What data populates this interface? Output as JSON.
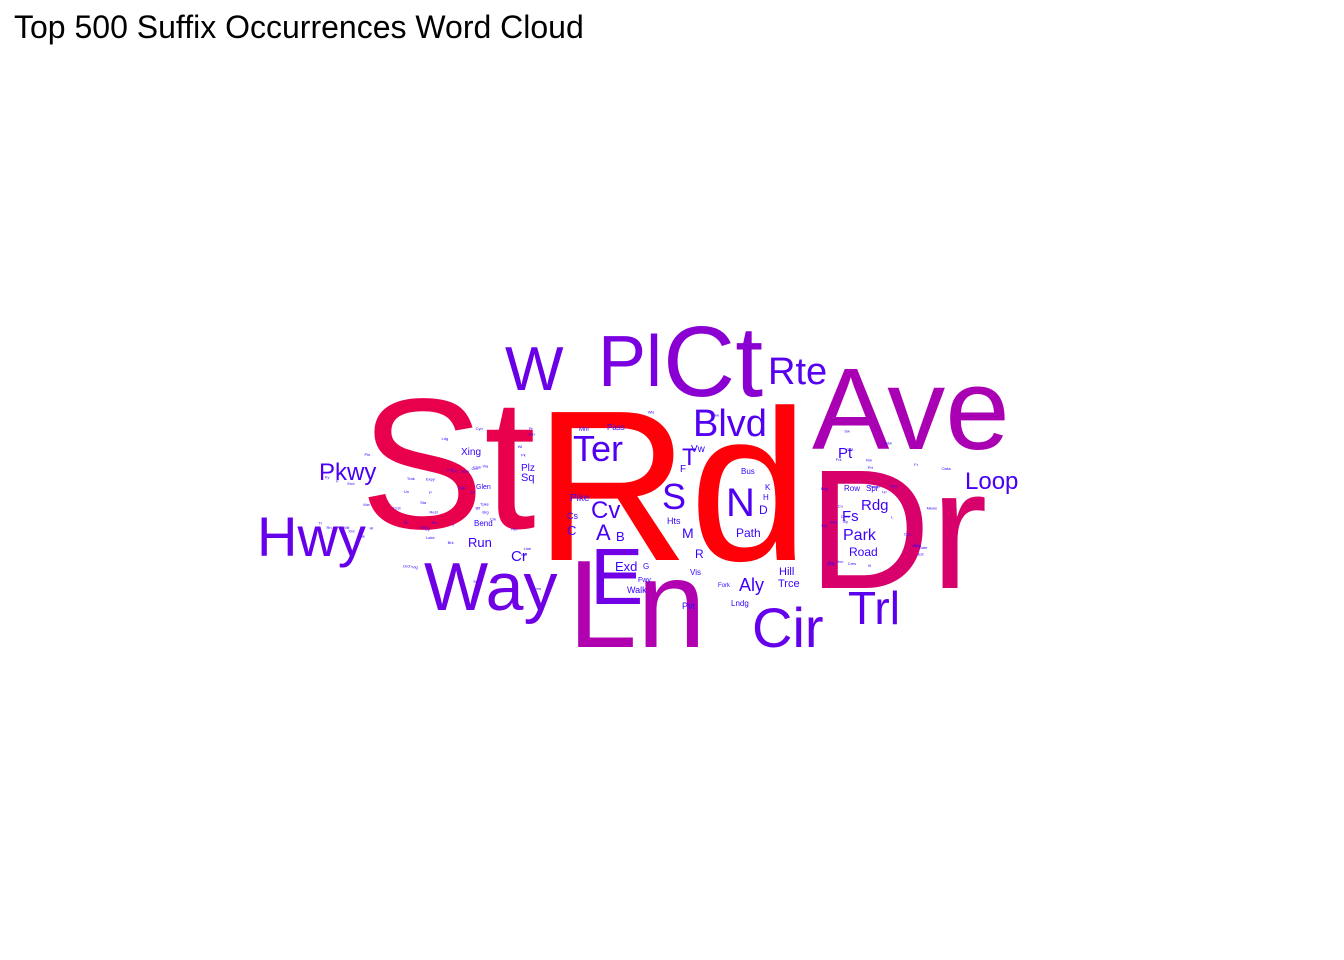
{
  "chart_data": {
    "type": "wordcloud",
    "title": "Top 500 Suffix Occurrences Word Cloud",
    "color_scale": [
      "#3300ff",
      "#ff0000"
    ],
    "words": [
      {
        "text": "Rd",
        "weight": 100,
        "color": "#ff0008"
      },
      {
        "text": "St",
        "weight": 80,
        "color": "#e8004c"
      },
      {
        "text": "Dr",
        "weight": 72,
        "color": "#d8006a"
      },
      {
        "text": "Ln",
        "weight": 58,
        "color": "#b000b0"
      },
      {
        "text": "Ave",
        "weight": 55,
        "color": "#aa00b4"
      },
      {
        "text": "Ct",
        "weight": 49,
        "color": "#8a00d2"
      },
      {
        "text": "E",
        "weight": 38,
        "color": "#7100e6"
      },
      {
        "text": "Pl",
        "weight": 35,
        "color": "#7a00e0"
      },
      {
        "text": "Way",
        "weight": 33,
        "color": "#6f00e6"
      },
      {
        "text": "W",
        "weight": 29,
        "color": "#6a00e8"
      },
      {
        "text": "Hwy",
        "weight": 27,
        "color": "#6600ea"
      },
      {
        "text": "Cir",
        "weight": 27,
        "color": "#6500ec"
      },
      {
        "text": "Trl",
        "weight": 22,
        "color": "#5a00ee"
      },
      {
        "text": "Rte",
        "weight": 20,
        "color": "#5800f0"
      },
      {
        "text": "Blvd",
        "weight": 20,
        "color": "#5300f2"
      },
      {
        "text": "N",
        "weight": 20,
        "color": "#5000f2"
      },
      {
        "text": "Ter",
        "weight": 19,
        "color": "#5200f2"
      },
      {
        "text": "S",
        "weight": 19,
        "color": "#4f00f2"
      },
      {
        "text": "Cv",
        "weight": 13,
        "color": "#4a00f4"
      },
      {
        "text": "T",
        "weight": 13,
        "color": "#4800f4"
      },
      {
        "text": "Pkwy",
        "weight": 13,
        "color": "#4a00f4"
      },
      {
        "text": "Loop",
        "weight": 13,
        "color": "#4800f4"
      },
      {
        "text": "A",
        "weight": 12,
        "color": "#4500f6"
      },
      {
        "text": "Aly",
        "weight": 10,
        "color": "#4200f8"
      },
      {
        "text": "Park",
        "weight": 9,
        "color": "#3f00f8"
      },
      {
        "text": "Rdg",
        "weight": 9,
        "color": "#3f00f8"
      },
      {
        "text": "Fs",
        "weight": 9,
        "color": "#3e00f8"
      },
      {
        "text": "Exd",
        "weight": 8,
        "color": "#3c00fa"
      },
      {
        "text": "Pt",
        "weight": 8,
        "color": "#3c00fa"
      },
      {
        "text": "Cr",
        "weight": 8,
        "color": "#3c00fa"
      },
      {
        "text": "M",
        "weight": 8,
        "color": "#3c00fa"
      },
      {
        "text": "Run",
        "weight": 7,
        "color": "#3a00fa"
      },
      {
        "text": "Path",
        "weight": 7,
        "color": "#3a00fa"
      },
      {
        "text": "Road",
        "weight": 7,
        "color": "#3a00fa"
      },
      {
        "text": "B",
        "weight": 7,
        "color": "#3a00fa"
      },
      {
        "text": "C",
        "weight": 7,
        "color": "#3a00fa"
      },
      {
        "text": "D",
        "weight": 7,
        "color": "#3a00fa"
      },
      {
        "text": "Hill",
        "weight": 6,
        "color": "#3800fc"
      },
      {
        "text": "Trce",
        "weight": 6,
        "color": "#3800fc"
      },
      {
        "text": "Xing",
        "weight": 5,
        "color": "#3700fc"
      },
      {
        "text": "Sq",
        "weight": 6,
        "color": "#3700fc"
      },
      {
        "text": "Plz",
        "weight": 5,
        "color": "#3700fc"
      },
      {
        "text": "Pike",
        "weight": 5,
        "color": "#3600fc"
      },
      {
        "text": "Walk",
        "weight": 5,
        "color": "#3600fc"
      },
      {
        "text": "R",
        "weight": 6,
        "color": "#3600fc"
      },
      {
        "text": "F",
        "weight": 5,
        "color": "#3600fc"
      },
      {
        "text": "Pvt",
        "weight": 5,
        "color": "#3600fc"
      },
      {
        "text": "Hts",
        "weight": 5,
        "color": "#3600fc"
      },
      {
        "text": "Bus",
        "weight": 4,
        "color": "#3500fe"
      },
      {
        "text": "Pass",
        "weight": 4,
        "color": "#3500fe"
      },
      {
        "text": "Row",
        "weight": 4,
        "color": "#3500fe"
      },
      {
        "text": "Spr",
        "weight": 4,
        "color": "#3500fe"
      },
      {
        "text": "Vw",
        "weight": 4,
        "color": "#3500fe"
      },
      {
        "text": "Cs",
        "weight": 4,
        "color": "#3500fe"
      },
      {
        "text": "G",
        "weight": 4,
        "color": "#3500fe"
      },
      {
        "text": "Bend",
        "weight": 4,
        "color": "#3400fe"
      },
      {
        "text": "Glen",
        "weight": 3,
        "color": "#3400fe"
      },
      {
        "text": "Lndg",
        "weight": 4,
        "color": "#3400fe"
      },
      {
        "text": "Vis",
        "weight": 4,
        "color": "#3400fe"
      },
      {
        "text": "H",
        "weight": 4,
        "color": "#3400fe"
      },
      {
        "text": "K",
        "weight": 4,
        "color": "#3400fe"
      },
      {
        "text": "Mnr",
        "weight": 3,
        "color": "#3300ff"
      },
      {
        "text": "Crst",
        "weight": 3,
        "color": "#3300ff"
      },
      {
        "text": "Fwy",
        "weight": 3,
        "color": "#3300ff"
      },
      {
        "text": "Fork",
        "weight": 3,
        "color": "#3300ff"
      },
      {
        "text": "Ests",
        "weight": 3,
        "color": "#3300ff"
      },
      {
        "text": "Main",
        "weight": 3,
        "color": "#3300ff"
      },
      {
        "text": "Spur",
        "weight": 3,
        "color": "#3300ff"
      },
      {
        "text": "Tpke",
        "weight": 3,
        "color": "#3300ff"
      },
      {
        "text": "Expy",
        "weight": 3,
        "color": "#3300ff"
      },
      {
        "text": "Oaks",
        "weight": 3,
        "color": "#3300ff"
      },
      {
        "text": "Lake",
        "weight": 3,
        "color": "#3300ff"
      },
      {
        "text": "Crk",
        "weight": 3,
        "color": "#3300ff"
      },
      {
        "text": "Byp",
        "weight": 3,
        "color": "#3300ff"
      },
      {
        "text": "Line",
        "weight": 3,
        "color": "#3300ff"
      },
      {
        "text": "Gate",
        "weight": 3,
        "color": "#3300ff"
      },
      {
        "text": "Brg",
        "weight": 3,
        "color": "#3300ff"
      },
      {
        "text": "Club",
        "weight": 3,
        "color": "#3300ff"
      },
      {
        "text": "Vly",
        "weight": 3,
        "color": "#3300ff"
      },
      {
        "text": "Anx",
        "weight": 3,
        "color": "#3300ff"
      },
      {
        "text": "Bay",
        "weight": 3,
        "color": "#3300ff"
      },
      {
        "text": "Up",
        "weight": 3,
        "color": "#3300ff"
      },
      {
        "text": "Ne",
        "weight": 3,
        "color": "#3300ff"
      },
      {
        "text": "Sp",
        "weight": 3,
        "color": "#3300ff"
      },
      {
        "text": "Sw",
        "weight": 3,
        "color": "#3300ff"
      },
      {
        "text": "Fr",
        "weight": 3,
        "color": "#3300ff"
      },
      {
        "text": "Pr",
        "weight": 3,
        "color": "#3300ff"
      },
      {
        "text": "Co",
        "weight": 3,
        "color": "#3300ff"
      },
      {
        "text": "Ext",
        "weight": 3,
        "color": "#3300ff"
      },
      {
        "text": "Est",
        "weight": 3,
        "color": "#3300ff"
      },
      {
        "text": "Mill",
        "weight": 3,
        "color": "#3300ff"
      },
      {
        "text": "Knl",
        "weight": 3,
        "color": "#3300ff"
      },
      {
        "text": "Cres",
        "weight": 3,
        "color": "#3300ff"
      },
      {
        "text": "Cyn",
        "weight": 3,
        "color": "#3300ff"
      },
      {
        "text": "End",
        "weight": 3,
        "color": "#3300ff"
      },
      {
        "text": "Sql",
        "weight": 3,
        "color": "#3300ff"
      },
      {
        "text": "Rest",
        "weight": 3,
        "color": "#3300ff"
      },
      {
        "text": "Mews",
        "weight": 3,
        "color": "#3300ff"
      },
      {
        "text": "Hl",
        "weight": 3,
        "color": "#3300ff"
      },
      {
        "text": "Sr",
        "weight": 3,
        "color": "#3300ff"
      },
      {
        "text": "U",
        "weight": 3,
        "color": "#3300ff"
      },
      {
        "text": "L",
        "weight": 3,
        "color": "#3300ff"
      },
      {
        "text": "Y",
        "weight": 3,
        "color": "#3300ff"
      },
      {
        "text": "V",
        "weight": 3,
        "color": "#3300ff"
      },
      {
        "text": "P",
        "weight": 3,
        "color": "#3300ff"
      },
      {
        "text": "Vl",
        "weight": 3,
        "color": "#3300ff"
      },
      {
        "text": "Wl",
        "weight": 3,
        "color": "#3300ff"
      },
      {
        "text": "Rw",
        "weight": 3,
        "color": "#3300ff"
      },
      {
        "text": "Rn",
        "weight": 3,
        "color": "#3300ff"
      },
      {
        "text": "Mw",
        "weight": 3,
        "color": "#3300ff"
      },
      {
        "text": "Nw",
        "weight": 3,
        "color": "#3300ff"
      },
      {
        "text": "Ky",
        "weight": 3,
        "color": "#3300ff"
      },
      {
        "text": "Ldg",
        "weight": 3,
        "color": "#3300ff"
      },
      {
        "text": "Lp",
        "weight": 3,
        "color": "#3300ff"
      },
      {
        "text": "Pk",
        "weight": 3,
        "color": "#3300ff"
      },
      {
        "text": "Sta",
        "weight": 3,
        "color": "#3300ff"
      },
      {
        "text": "Sta",
        "weight": 3,
        "color": "#3300ff"
      },
      {
        "text": "Stra",
        "weight": 3,
        "color": "#3300ff"
      },
      {
        "text": "Tr",
        "weight": 3,
        "color": "#3300ff"
      },
      {
        "text": "Ramp",
        "weight": 3,
        "color": "#3300ff"
      },
      {
        "text": "Cove",
        "weight": 3,
        "color": "#3300ff"
      },
      {
        "text": "Cmn",
        "weight": 3,
        "color": "#3300ff"
      },
      {
        "text": "Grv",
        "weight": 3,
        "color": "#3300ff"
      },
      {
        "text": "Isle",
        "weight": 3,
        "color": "#3300ff"
      },
      {
        "text": "Frk",
        "weight": 3,
        "color": "#3300ff"
      },
      {
        "text": "Blf",
        "weight": 3,
        "color": "#3300ff"
      },
      {
        "text": "Brk",
        "weight": 3,
        "color": "#3300ff"
      },
      {
        "text": "Cpe",
        "weight": 3,
        "color": "#3300ff"
      },
      {
        "text": "Dl",
        "weight": 3,
        "color": "#3300ff"
      },
      {
        "text": "Hbr",
        "weight": 3,
        "color": "#3300ff"
      },
      {
        "text": "Hvn",
        "weight": 3,
        "color": "#3300ff"
      },
      {
        "text": "Jct",
        "weight": 3,
        "color": "#3300ff"
      },
      {
        "text": "Mdw",
        "weight": 3,
        "color": "#3300ff"
      },
      {
        "text": "Orch",
        "weight": 3,
        "color": "#3300ff"
      },
      {
        "text": "Oval",
        "weight": 3,
        "color": "#3300ff"
      },
      {
        "text": "Pln",
        "weight": 3,
        "color": "#3300ff"
      },
      {
        "text": "Prt",
        "weight": 3,
        "color": "#3300ff"
      },
      {
        "text": "Shr",
        "weight": 3,
        "color": "#3300ff"
      },
      {
        "text": "Smt",
        "weight": 3,
        "color": "#3300ff"
      },
      {
        "text": "Trak",
        "weight": 3,
        "color": "#3300ff"
      },
      {
        "text": "Un",
        "weight": 3,
        "color": "#3300ff"
      },
      {
        "text": "Via",
        "weight": 3,
        "color": "#3300ff"
      },
      {
        "text": "Vlg",
        "weight": 3,
        "color": "#3300ff"
      },
      {
        "text": "Wls",
        "weight": 3,
        "color": "#3300ff"
      },
      {
        "text": "Xrd",
        "weight": 3,
        "color": "#3300ff"
      }
    ]
  }
}
